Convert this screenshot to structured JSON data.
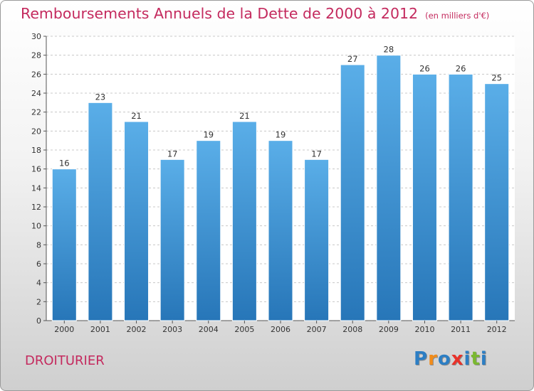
{
  "chart_data": {
    "type": "bar",
    "title": "Remboursements Annuels de la Dette de 2000 à 2012",
    "subtitle": "(en milliers d'€)",
    "categories": [
      "2000",
      "2001",
      "2002",
      "2003",
      "2004",
      "2005",
      "2006",
      "2007",
      "2008",
      "2009",
      "2010",
      "2011",
      "2012"
    ],
    "values": [
      16,
      23,
      21,
      17,
      19,
      21,
      19,
      17,
      27,
      28,
      26,
      26,
      25
    ],
    "ylim": [
      0,
      30
    ],
    "yticks": [
      0,
      2,
      4,
      6,
      8,
      10,
      12,
      14,
      16,
      18,
      20,
      22,
      24,
      26,
      28,
      30
    ],
    "xlabel": "",
    "ylabel": "",
    "grid": "horizontal dashed",
    "bar_color_top": "#5aaee8",
    "bar_color_bottom": "#2776b8"
  },
  "commune": "DROITURIER",
  "logo": {
    "letters": [
      "P",
      "r",
      "o",
      "x",
      "i",
      "t",
      "i"
    ],
    "colors": [
      "#2c7ec4",
      "#f28c1a",
      "#2c7ec4",
      "#e8322a",
      "#2c7ec4",
      "#7ab830",
      "#2c7ec4"
    ]
  },
  "colors": {
    "title": "#c42a5e",
    "axis": "#555555"
  }
}
